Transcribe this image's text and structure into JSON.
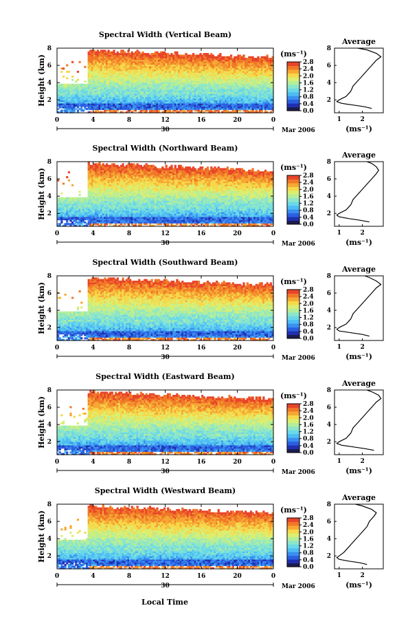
{
  "figure": {
    "x_axis_label": "Local Time",
    "date_center_label": "30",
    "month_label": "Mar 2006",
    "panel_ylabel": "Height (km)",
    "unit_label": "(ms⁻¹)",
    "avg_title": "Average",
    "avg_xlabel": "(ms⁻¹)"
  },
  "colors": {
    "scale": [
      "#1c1c50",
      "#2030b0",
      "#2b5fe0",
      "#3a8ff0",
      "#4fbdf5",
      "#6ad8e8",
      "#8ee6c8",
      "#b4ee9a",
      "#dcee70",
      "#f6d84a",
      "#f6a834",
      "#f07828",
      "#e8452a"
    ]
  },
  "chart_data": [
    {
      "type": "heatmap",
      "title": "Spectral Width (Vertical Beam)",
      "xlabel": "",
      "ylabel": "Height (km)",
      "x_ticks": [
        "0",
        "4",
        "8",
        "12",
        "16",
        "20",
        "0"
      ],
      "xlim": [
        0,
        24
      ],
      "y_ticks": [
        "2",
        "4",
        "6",
        "8"
      ],
      "ylim": [
        0.5,
        8
      ],
      "colorbar": {
        "label": "(ms⁻¹)",
        "ticks": [
          "0.0",
          "0.4",
          "0.8",
          "1.2",
          "1.6",
          "2.0",
          "2.4",
          "2.8"
        ],
        "range": [
          0,
          2.8
        ]
      },
      "profile": {
        "title": "Average",
        "xlabel": "(ms⁻¹)",
        "x_ticks": [
          "1",
          "2"
        ],
        "xlim": [
          0.8,
          2.9
        ],
        "y_ticks": [
          "2",
          "4",
          "6",
          "8"
        ],
        "height": [
          1.0,
          1.2,
          1.4,
          1.6,
          1.8,
          2.0,
          2.4,
          3.0,
          3.6,
          4.2,
          4.8,
          5.4,
          6.0,
          6.6,
          7.0,
          7.4,
          7.8,
          8.0
        ],
        "width": [
          2.4,
          2.1,
          1.6,
          1.1,
          0.9,
          1.0,
          1.3,
          1.5,
          1.6,
          1.8,
          2.0,
          2.2,
          2.4,
          2.6,
          2.8,
          2.6,
          2.2,
          1.8
        ]
      }
    },
    {
      "type": "heatmap",
      "title": "Spectral Width (Northward Beam)",
      "xlabel": "",
      "ylabel": "Height (km)",
      "x_ticks": [
        "0",
        "4",
        "8",
        "12",
        "16",
        "20",
        "0"
      ],
      "xlim": [
        0,
        24
      ],
      "y_ticks": [
        "2",
        "4",
        "6",
        "8"
      ],
      "ylim": [
        0.5,
        8
      ],
      "colorbar": {
        "label": "(ms⁻¹)",
        "ticks": [
          "0.0",
          "0.4",
          "0.8",
          "1.2",
          "1.6",
          "2.0",
          "2.4",
          "2.8"
        ],
        "range": [
          0,
          2.8
        ]
      },
      "profile": {
        "title": "Average",
        "xlabel": "(ms⁻¹)",
        "x_ticks": [
          "1",
          "2"
        ],
        "xlim": [
          0.8,
          2.9
        ],
        "y_ticks": [
          "2",
          "4",
          "6",
          "8"
        ],
        "height": [
          1.0,
          1.2,
          1.4,
          1.6,
          1.8,
          2.0,
          2.4,
          3.0,
          3.6,
          4.2,
          4.8,
          5.4,
          6.0,
          6.6,
          7.0,
          7.4,
          7.8,
          8.0
        ],
        "width": [
          2.3,
          1.9,
          1.4,
          1.0,
          0.9,
          1.0,
          1.3,
          1.5,
          1.6,
          1.8,
          2.0,
          2.2,
          2.4,
          2.6,
          2.7,
          2.6,
          2.4,
          2.2
        ]
      }
    },
    {
      "type": "heatmap",
      "title": "Spectral Width (Southward Beam)",
      "xlabel": "",
      "ylabel": "Height (km)",
      "x_ticks": [
        "0",
        "4",
        "8",
        "12",
        "16",
        "20",
        "0"
      ],
      "xlim": [
        0,
        24
      ],
      "y_ticks": [
        "2",
        "4",
        "6",
        "8"
      ],
      "ylim": [
        0.5,
        8
      ],
      "colorbar": {
        "label": "(ms⁻¹)",
        "ticks": [
          "0.0",
          "0.4",
          "0.8",
          "1.2",
          "1.6",
          "2.0",
          "2.4",
          "2.8"
        ],
        "range": [
          0,
          2.8
        ]
      },
      "profile": {
        "title": "Average",
        "xlabel": "(ms⁻¹)",
        "x_ticks": [
          "1",
          "2"
        ],
        "xlim": [
          0.8,
          2.9
        ],
        "y_ticks": [
          "2",
          "4",
          "6",
          "8"
        ],
        "height": [
          1.0,
          1.2,
          1.4,
          1.6,
          1.8,
          2.0,
          2.4,
          3.0,
          3.6,
          4.2,
          4.8,
          5.4,
          6.0,
          6.6,
          7.0,
          7.4,
          7.8,
          8.0
        ],
        "width": [
          2.3,
          2.0,
          1.5,
          1.0,
          0.9,
          1.0,
          1.3,
          1.5,
          1.6,
          1.8,
          2.0,
          2.2,
          2.4,
          2.6,
          2.8,
          2.6,
          2.3,
          2.1
        ]
      }
    },
    {
      "type": "heatmap",
      "title": "Spectral Width (Eastward Beam)",
      "xlabel": "",
      "ylabel": "Height (km)",
      "x_ticks": [
        "0",
        "4",
        "8",
        "12",
        "16",
        "20",
        "0"
      ],
      "xlim": [
        0,
        24
      ],
      "y_ticks": [
        "2",
        "4",
        "6",
        "8"
      ],
      "ylim": [
        0.5,
        8
      ],
      "colorbar": {
        "label": "(ms⁻¹)",
        "ticks": [
          "0.0",
          "0.4",
          "0.8",
          "1.2",
          "1.6",
          "2.0",
          "2.4",
          "2.8"
        ],
        "range": [
          0,
          2.8
        ]
      },
      "profile": {
        "title": "Average",
        "xlabel": "(ms⁻¹)",
        "x_ticks": [
          "1",
          "2"
        ],
        "xlim": [
          0.8,
          2.9
        ],
        "y_ticks": [
          "2",
          "4",
          "6",
          "8"
        ],
        "height": [
          1.0,
          1.2,
          1.4,
          1.6,
          1.8,
          2.0,
          2.4,
          3.0,
          3.6,
          4.2,
          4.8,
          5.4,
          6.0,
          6.6,
          7.0,
          7.4,
          7.8,
          8.0
        ],
        "width": [
          2.5,
          2.1,
          1.6,
          1.1,
          0.9,
          1.0,
          1.3,
          1.5,
          1.6,
          1.8,
          2.0,
          2.2,
          2.4,
          2.6,
          2.8,
          2.7,
          2.4,
          2.2
        ]
      }
    },
    {
      "type": "heatmap",
      "title": "Spectral Width (Westward Beam)",
      "xlabel": "Local Time",
      "ylabel": "Height (km)",
      "x_ticks": [
        "0",
        "4",
        "8",
        "12",
        "16",
        "20",
        "0"
      ],
      "xlim": [
        0,
        24
      ],
      "y_ticks": [
        "2",
        "4",
        "6",
        "8"
      ],
      "ylim": [
        0.5,
        8
      ],
      "colorbar": {
        "label": "(ms⁻¹)",
        "ticks": [
          "0.0",
          "0.4",
          "0.8",
          "1.2",
          "1.6",
          "2.0",
          "2.4",
          "2.8"
        ],
        "range": [
          0,
          2.8
        ]
      },
      "profile": {
        "title": "Average",
        "xlabel": "(ms⁻¹)",
        "x_ticks": [
          "1",
          "2"
        ],
        "xlim": [
          0.8,
          2.9
        ],
        "y_ticks": [
          "2",
          "4",
          "6",
          "8"
        ],
        "height": [
          1.0,
          1.2,
          1.4,
          1.6,
          1.8,
          2.0,
          2.4,
          3.0,
          3.6,
          4.2,
          4.8,
          5.4,
          6.0,
          6.6,
          7.0,
          7.4,
          7.8,
          8.0
        ],
        "width": [
          2.2,
          1.9,
          1.4,
          1.0,
          0.9,
          1.0,
          1.2,
          1.4,
          1.6,
          1.8,
          2.0,
          2.2,
          2.3,
          2.5,
          2.6,
          2.4,
          2.0,
          1.7
        ]
      }
    }
  ]
}
